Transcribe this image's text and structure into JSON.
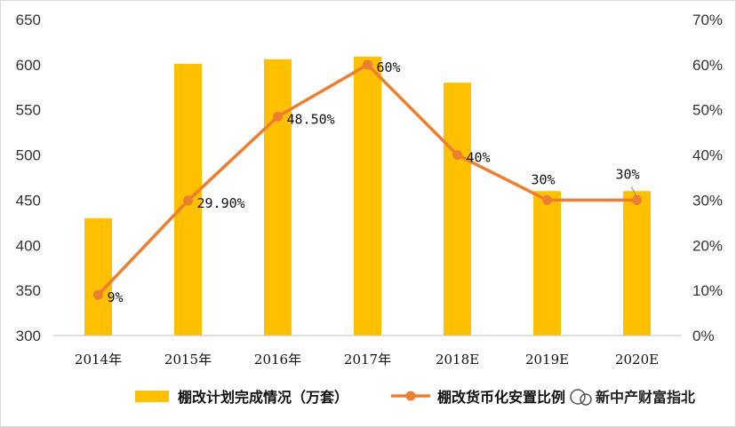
{
  "chart_data": {
    "type": "bar+line",
    "categories": [
      "2014年",
      "2015年",
      "2016年",
      "2017年",
      "2018E",
      "2019E",
      "2020E"
    ],
    "series": [
      {
        "name": "棚改计划完成情况（万套）",
        "kind": "bar",
        "axis": "left",
        "color": "#FFC000",
        "values": [
          430,
          601,
          606,
          609,
          580,
          460,
          460
        ]
      },
      {
        "name": "棚改货币化安置比例",
        "kind": "line",
        "axis": "right",
        "color": "#ED7D31",
        "values": [
          9,
          29.9,
          48.5,
          60,
          40,
          30,
          30
        ],
        "labels": [
          "9%",
          "29.90%",
          "48.50%",
          "60%",
          "40%",
          "30%",
          "30%"
        ]
      }
    ],
    "y_left": {
      "min": 300,
      "max": 650,
      "ticks": [
        "300",
        "350",
        "400",
        "450",
        "500",
        "550",
        "600",
        "650"
      ]
    },
    "y_right": {
      "min": 0,
      "max": 70,
      "ticks": [
        "0%",
        "10%",
        "20%",
        "30%",
        "40%",
        "50%",
        "60%",
        "70%"
      ]
    },
    "grid": false,
    "legend": "bottom"
  },
  "watermark": "新中产财富指北"
}
